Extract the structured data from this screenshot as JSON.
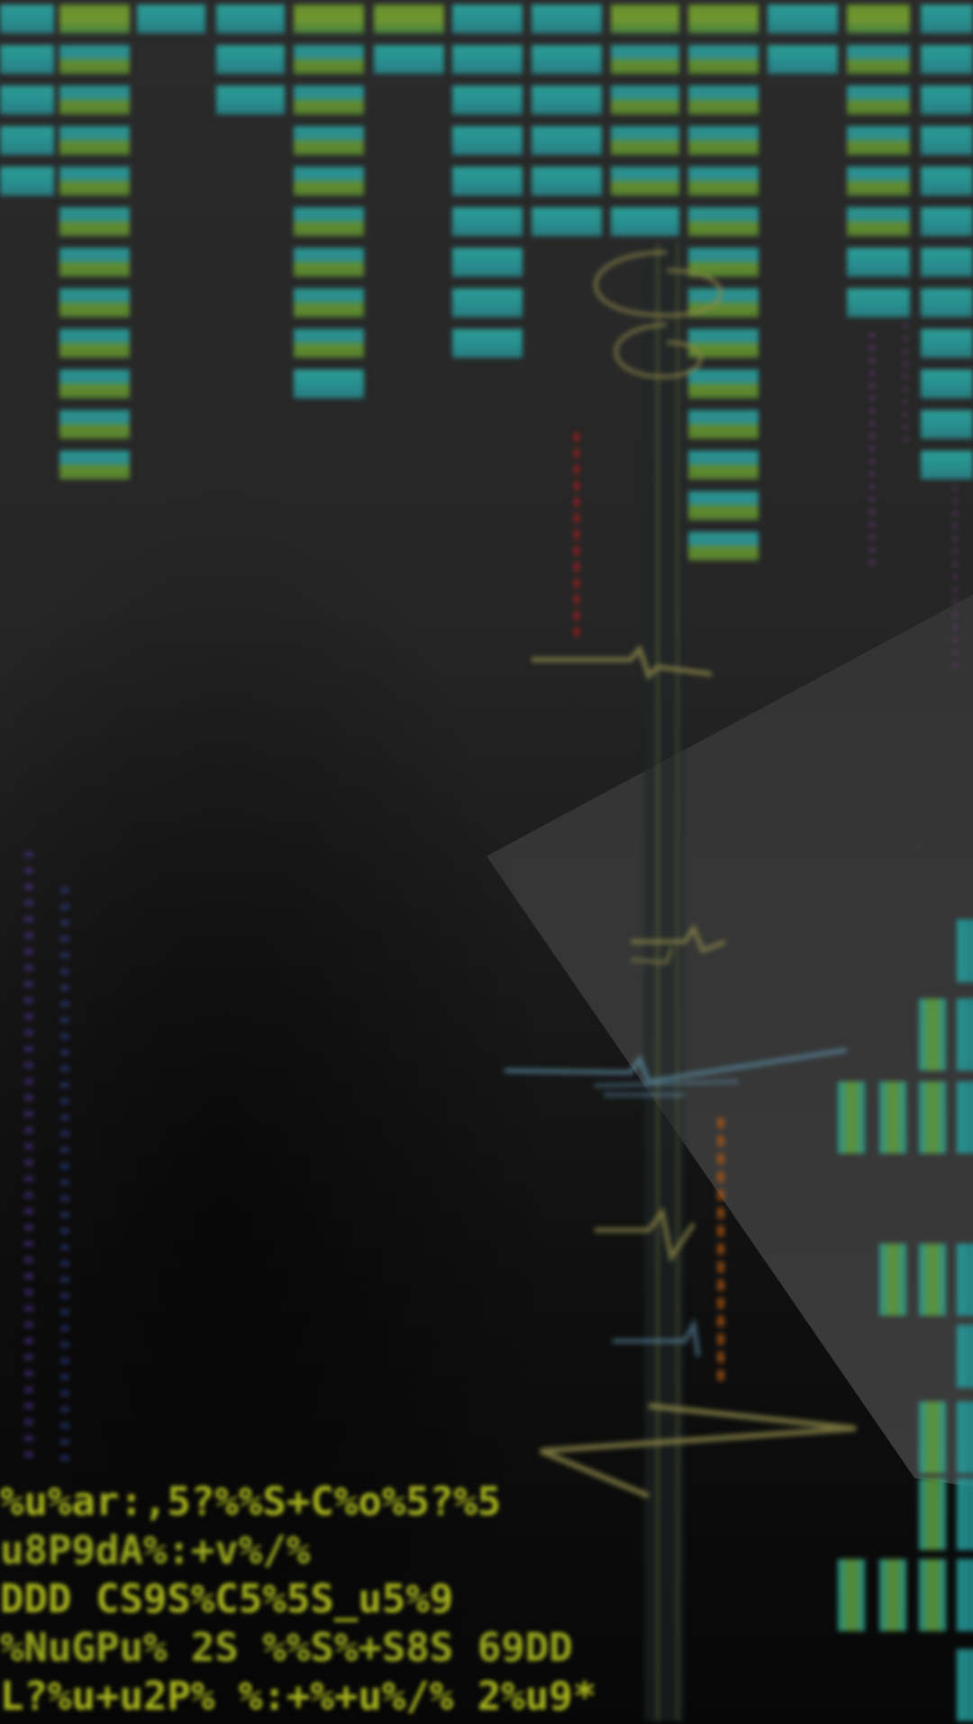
{
  "colors": {
    "background_top": "#2a2a2a",
    "background_bottom": "#070707",
    "teal_block": "#2aa7a0",
    "olive_block": "#6fa02d",
    "trace_gold": "#8f8a4a",
    "trace_red": "#a0201c",
    "trace_blue": "#5b8ea6",
    "trace_orange": "#b05a18",
    "dots_purple": "#7a3a8a",
    "dots_blue": "#3a4aa8",
    "status_text": "#a6b21c"
  },
  "status_lines": [
    {
      "text": "%u%ar:,5?%%S+C%o%5?%5"
    },
    {
      "text": "u8P9dA%:+v%/%"
    },
    {
      "text": "DDD CS9S%C5%5S_u5%9"
    },
    {
      "text": "%NuGPu% 2S %%S%+S8S 69DD"
    },
    {
      "text": "L?%u+u2P% %:+%+u%/% 2%u9*"
    }
  ],
  "panels": {
    "top_grid": {
      "icon": "spectrum-bars"
    },
    "trace": {
      "icon": "waveform"
    },
    "bottom_right_grid": {
      "icon": "spectrum-bars"
    }
  }
}
